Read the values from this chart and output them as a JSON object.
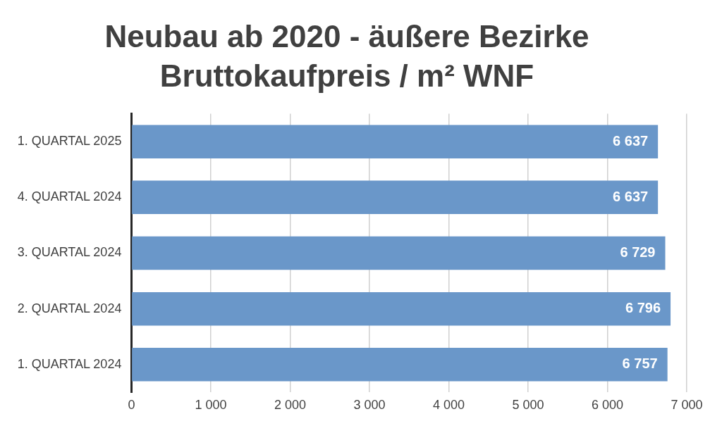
{
  "chart_data": {
    "type": "bar",
    "orientation": "horizontal",
    "title": "Neubau ab 2020 - äußere Bezirke",
    "subtitle": "Bruttokaufpreis / m² WNF",
    "categories": [
      "1. QUARTAL 2025",
      "4. QUARTAL 2024",
      "3. QUARTAL 2024",
      "2. QUARTAL 2024",
      "1. QUARTAL 2024"
    ],
    "values": [
      6637,
      6637,
      6729,
      6796,
      6757
    ],
    "value_labels": [
      "6 637",
      "6 637",
      "6 729",
      "6 796",
      "6 757"
    ],
    "color": "#6a97c9",
    "xlim": [
      0,
      7000
    ],
    "xticks": [
      0,
      {
        "value": 1000,
        "label": "1 000"
      },
      {
        "value": 2000,
        "label": "2 000"
      },
      {
        "value": 3000,
        "label": "3 000"
      },
      {
        "value": 4000,
        "label": "4 000"
      },
      {
        "value": 5000,
        "label": "5 000"
      },
      {
        "value": 6000,
        "label": "6 000"
      },
      {
        "value": 7000,
        "label": "7 000"
      }
    ],
    "grid": "x",
    "legend": false
  }
}
